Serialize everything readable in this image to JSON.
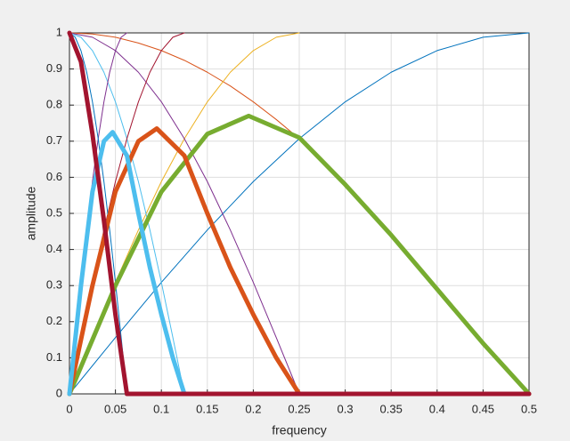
{
  "chart_data": {
    "type": "line",
    "xlabel": "frequency",
    "ylabel": "amplitude",
    "xlim": [
      0,
      0.5
    ],
    "xticks": [
      0,
      0.05,
      0.1,
      0.15,
      0.2,
      0.25,
      0.3,
      0.35,
      0.4,
      0.45,
      0.5
    ],
    "ylim": [
      0,
      1
    ],
    "yticks": [
      0,
      0.1,
      0.2,
      0.3,
      0.4,
      0.5,
      0.6,
      0.7,
      0.8,
      0.9,
      1
    ],
    "grid": true,
    "series": [
      {
        "color": "#0072BD",
        "line_width": 1,
        "x": [
          0,
          0.05,
          0.1,
          0.15,
          0.2,
          0.25,
          0.3,
          0.35,
          0.4,
          0.45,
          0.5
        ],
        "values": [
          0,
          0.156,
          0.309,
          0.454,
          0.588,
          0.707,
          0.809,
          0.891,
          0.951,
          0.988,
          1
        ]
      },
      {
        "color": "#D95319",
        "line_width": 1,
        "x": [
          0,
          0.025,
          0.05,
          0.075,
          0.1,
          0.125,
          0.15,
          0.175,
          0.2,
          0.225,
          0.25
        ],
        "values": [
          1,
          0.997,
          0.988,
          0.972,
          0.951,
          0.924,
          0.891,
          0.853,
          0.809,
          0.76,
          0.707
        ]
      },
      {
        "color": "#EDB120",
        "line_width": 1,
        "x": [
          0,
          0.025,
          0.05,
          0.075,
          0.1,
          0.125,
          0.15,
          0.175,
          0.2,
          0.225,
          0.25
        ],
        "values": [
          0,
          0.156,
          0.309,
          0.454,
          0.588,
          0.707,
          0.809,
          0.891,
          0.951,
          0.988,
          1
        ]
      },
      {
        "color": "#7E2F8E",
        "line_width": 1,
        "x": [
          0,
          0.025,
          0.05,
          0.075,
          0.1,
          0.125,
          0.15,
          0.175,
          0.2,
          0.225,
          0.25
        ],
        "values": [
          1,
          0.988,
          0.951,
          0.891,
          0.809,
          0.707,
          0.588,
          0.454,
          0.309,
          0.156,
          0
        ]
      },
      {
        "color": "#4DBEEE",
        "line_width": 1,
        "x": [
          0,
          0.0125,
          0.025,
          0.0375,
          0.05,
          0.0625,
          0.075,
          0.0875,
          0.1,
          0.1125,
          0.125
        ],
        "values": [
          1,
          0.988,
          0.951,
          0.891,
          0.809,
          0.707,
          0.588,
          0.454,
          0.309,
          0.156,
          0
        ]
      },
      {
        "color": "#A2142F",
        "line_width": 1,
        "x": [
          0,
          0.0125,
          0.025,
          0.0375,
          0.05,
          0.0625,
          0.075,
          0.0875,
          0.1,
          0.1125,
          0.125
        ],
        "values": [
          0,
          0.156,
          0.309,
          0.454,
          0.588,
          0.707,
          0.809,
          0.891,
          0.951,
          0.988,
          1
        ]
      },
      {
        "color": "#7E2F8E",
        "line_width": 1,
        "x": [
          0,
          0.00625,
          0.0125,
          0.01875,
          0.025,
          0.03125,
          0.0375,
          0.04375,
          0.05,
          0.05625,
          0.0625
        ],
        "values": [
          0,
          0.156,
          0.309,
          0.454,
          0.588,
          0.707,
          0.809,
          0.891,
          0.951,
          0.988,
          1
        ]
      },
      {
        "color": "#0072BD",
        "line_width": 1,
        "x": [
          0,
          0.00625,
          0.0125,
          0.01875,
          0.025,
          0.03125,
          0.0375,
          0.04375,
          0.05,
          0.05625,
          0.0625
        ],
        "values": [
          1,
          0.988,
          0.951,
          0.891,
          0.809,
          0.707,
          0.588,
          0.454,
          0.309,
          0.156,
          0
        ]
      },
      {
        "color": "#77AC30",
        "line_width": 5,
        "x": [
          0,
          0.05,
          0.1,
          0.15,
          0.195,
          0.25,
          0.3,
          0.35,
          0.4,
          0.45,
          0.5
        ],
        "values": [
          0,
          0.3,
          0.56,
          0.72,
          0.77,
          0.71,
          0.58,
          0.44,
          0.29,
          0.14,
          0
        ]
      },
      {
        "color": "#D95319",
        "line_width": 5,
        "x": [
          0,
          0.025,
          0.05,
          0.075,
          0.095,
          0.125,
          0.15,
          0.175,
          0.2,
          0.225,
          0.25,
          0.5
        ],
        "values": [
          0,
          0.3,
          0.56,
          0.7,
          0.735,
          0.66,
          0.5,
          0.35,
          0.22,
          0.1,
          0,
          0
        ]
      },
      {
        "color": "#4DBEEE",
        "line_width": 5,
        "x": [
          0,
          0.0125,
          0.025,
          0.0375,
          0.047,
          0.0625,
          0.075,
          0.0875,
          0.1,
          0.1125,
          0.125
        ],
        "values": [
          0,
          0.3,
          0.56,
          0.7,
          0.725,
          0.66,
          0.5,
          0.35,
          0.22,
          0.1,
          0
        ]
      },
      {
        "color": "#A2142F",
        "line_width": 5,
        "x": [
          0,
          0.0125,
          0.025,
          0.0375,
          0.05,
          0.0625,
          0.5
        ],
        "values": [
          1,
          0.92,
          0.72,
          0.48,
          0.22,
          0,
          0
        ]
      }
    ]
  }
}
